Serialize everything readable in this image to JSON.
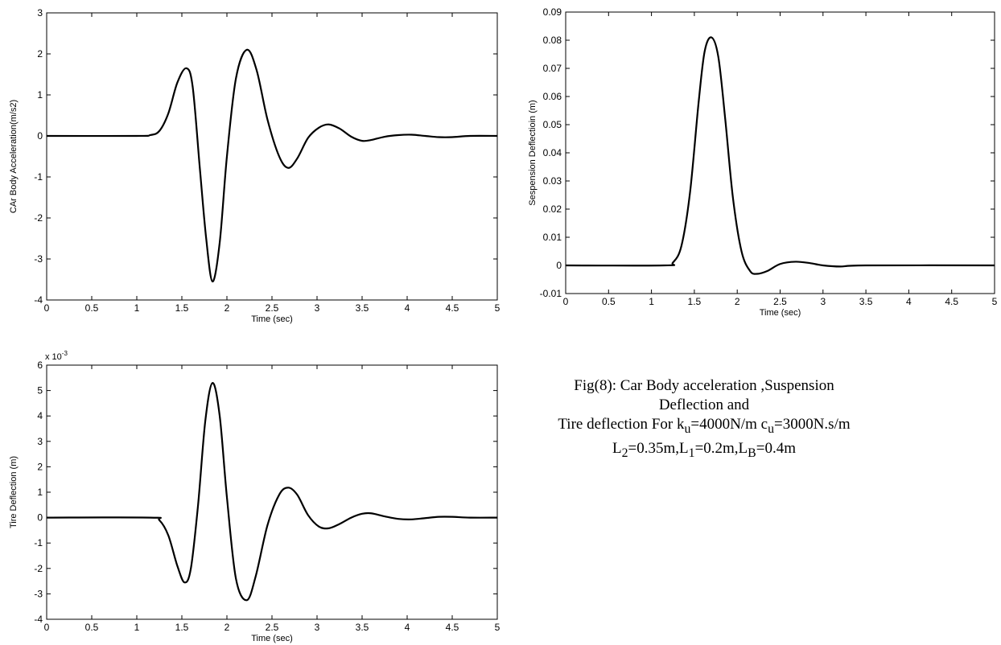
{
  "chart_data": [
    {
      "type": "line",
      "xlabel": "Time (sec)",
      "ylabel": "CAr Body Acceleration(m/s2)",
      "xlim": [
        0,
        5
      ],
      "ylim": [
        -4,
        3
      ],
      "xticks": [
        "0",
        "0.5",
        "1",
        "1.5",
        "2",
        "2.5",
        "3",
        "3.5",
        "4",
        "4.5",
        "5"
      ],
      "yticks": [
        "-4",
        "-3",
        "-2",
        "-1",
        "0",
        "1",
        "2",
        "3"
      ],
      "grid": false,
      "series": [
        {
          "x": [
            0,
            1.0,
            1.15,
            1.25,
            1.35,
            1.45,
            1.55,
            1.62,
            1.7,
            1.77,
            1.84,
            1.92,
            2.0,
            2.1,
            2.22,
            2.33,
            2.45,
            2.58,
            2.68,
            2.78,
            2.9,
            3.02,
            3.13,
            3.25,
            3.38,
            3.5,
            3.6,
            3.75,
            3.9,
            4.05,
            4.2,
            4.35,
            4.5,
            4.7,
            5.0
          ],
          "y": [
            0,
            0,
            0.02,
            0.12,
            0.55,
            1.3,
            1.65,
            1.2,
            -0.8,
            -2.5,
            -3.55,
            -2.6,
            -0.5,
            1.4,
            2.1,
            1.6,
            0.4,
            -0.5,
            -0.78,
            -0.55,
            -0.05,
            0.2,
            0.28,
            0.18,
            -0.02,
            -0.12,
            -0.1,
            -0.02,
            0.02,
            0.03,
            0.0,
            -0.03,
            -0.03,
            0.0,
            0.0
          ]
        }
      ]
    },
    {
      "type": "line",
      "xlabel": "Time (sec)",
      "ylabel": "Sespension Deflectioin (m)",
      "xlim": [
        0,
        5
      ],
      "ylim": [
        -0.01,
        0.09
      ],
      "xticks": [
        "0",
        "0.5",
        "1",
        "1.5",
        "2",
        "2.5",
        "3",
        "3.5",
        "4",
        "4.5",
        "5"
      ],
      "yticks": [
        "-0.01",
        "0",
        "0.01",
        "0.02",
        "0.03",
        "0.04",
        "0.05",
        "0.06",
        "0.07",
        "0.08",
        "0.09"
      ],
      "grid": false,
      "series": [
        {
          "x": [
            0,
            1.15,
            1.25,
            1.35,
            1.45,
            1.55,
            1.62,
            1.7,
            1.78,
            1.86,
            1.95,
            2.05,
            2.15,
            2.23,
            2.35,
            2.5,
            2.68,
            2.85,
            3.0,
            3.2,
            3.5,
            5.0
          ],
          "y": [
            0,
            0,
            0.001,
            0.007,
            0.026,
            0.058,
            0.076,
            0.081,
            0.074,
            0.052,
            0.024,
            0.005,
            -0.002,
            -0.003,
            -0.002,
            0.0005,
            0.0013,
            0.0008,
            0.0,
            -0.0004,
            0,
            0
          ]
        }
      ]
    },
    {
      "type": "line",
      "xlabel": "Time (sec)",
      "ylabel": "Tire Deflection (m)",
      "y_multiplier": "x 10-3",
      "xlim": [
        0,
        5
      ],
      "ylim": [
        -4,
        6
      ],
      "xticks": [
        "0",
        "0.5",
        "1",
        "1.5",
        "2",
        "2.5",
        "3",
        "3.5",
        "4",
        "4.5",
        "5"
      ],
      "yticks": [
        "-4",
        "-3",
        "-2",
        "-1",
        "0",
        "1",
        "2",
        "3",
        "4",
        "5",
        "6"
      ],
      "grid": false,
      "series": [
        {
          "x": [
            0,
            1.15,
            1.25,
            1.35,
            1.45,
            1.53,
            1.6,
            1.68,
            1.76,
            1.84,
            1.92,
            2.0,
            2.1,
            2.22,
            2.32,
            2.45,
            2.58,
            2.68,
            2.78,
            2.9,
            3.02,
            3.13,
            3.25,
            3.38,
            3.5,
            3.6,
            3.75,
            3.9,
            4.05,
            4.2,
            4.35,
            4.5,
            4.7,
            5.0
          ],
          "y": [
            0,
            0,
            -0.1,
            -0.7,
            -1.9,
            -2.55,
            -2.0,
            0.5,
            3.8,
            5.3,
            4.0,
            0.8,
            -2.4,
            -3.25,
            -2.3,
            -0.3,
            0.9,
            1.18,
            0.9,
            0.1,
            -0.35,
            -0.42,
            -0.25,
            0.0,
            0.15,
            0.17,
            0.05,
            -0.05,
            -0.07,
            -0.02,
            0.03,
            0.03,
            0.0,
            0.0
          ]
        }
      ]
    }
  ],
  "caption": {
    "line1": "Fig(8): Car Body acceleration ,Suspension",
    "line2": "Deflection and",
    "line3_a": "Tire deflection For k",
    "line3_sub1": "u",
    "line3_b": "=4000N/m c",
    "line3_sub2": "u",
    "line3_c": "=3000N.s/m",
    "line4_a": "L",
    "line4_sub1": "2",
    "line4_b": "=0.35m,L",
    "line4_sub2": "1",
    "line4_c": "=0.2m,L",
    "line4_sub3": "B",
    "line4_d": "=0.4m"
  },
  "colors": {
    "line": "#000000",
    "axes": "#000000",
    "background": "#ffffff"
  }
}
